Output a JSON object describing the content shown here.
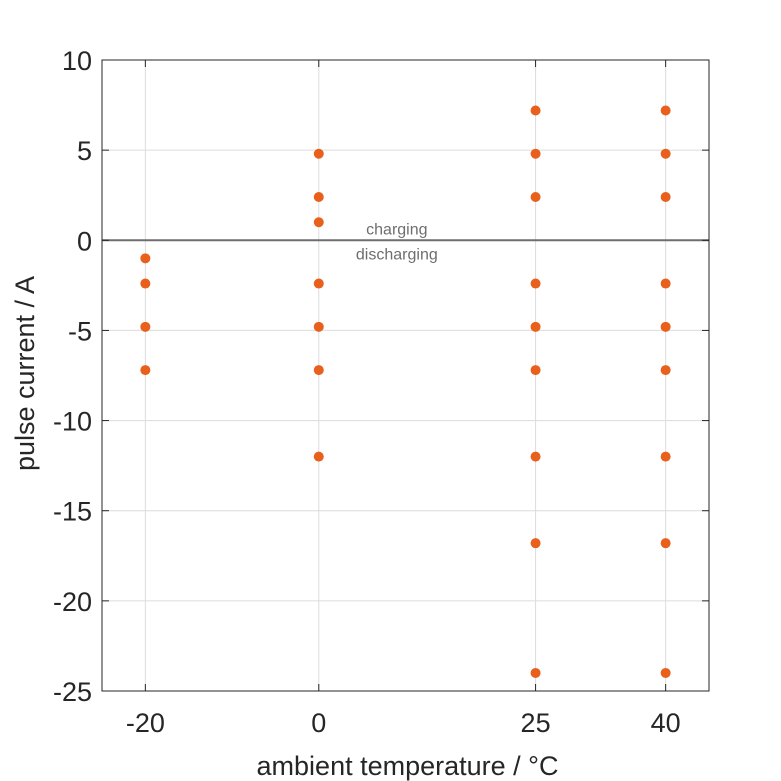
{
  "chart_data": {
    "type": "scatter",
    "xlabel": "ambient temperature / °C",
    "ylabel": "pulse current / A",
    "xticks": [
      -20,
      0,
      25,
      40
    ],
    "yticks": [
      10,
      5,
      0,
      -5,
      -10,
      -15,
      -20,
      -25
    ],
    "xlim": [
      -25,
      45
    ],
    "ylim": [
      -25,
      10
    ],
    "grid": true,
    "annotations": {
      "above": "charging",
      "below": "discharging"
    },
    "reference_line_y": 0,
    "marker_color": "#e8601c",
    "series": [
      {
        "points": [
          [
            -20,
            -1
          ],
          [
            -20,
            -2.4
          ],
          [
            -20,
            -4.8
          ],
          [
            -20,
            -7.2
          ],
          [
            0,
            4.8
          ],
          [
            0,
            2.4
          ],
          [
            0,
            1
          ],
          [
            0,
            -2.4
          ],
          [
            0,
            -4.8
          ],
          [
            0,
            -7.2
          ],
          [
            0,
            -12
          ],
          [
            25,
            7.2
          ],
          [
            25,
            4.8
          ],
          [
            25,
            2.4
          ],
          [
            25,
            -2.4
          ],
          [
            25,
            -4.8
          ],
          [
            25,
            -7.2
          ],
          [
            25,
            -12
          ],
          [
            25,
            -16.8
          ],
          [
            25,
            -24
          ],
          [
            40,
            7.2
          ],
          [
            40,
            4.8
          ],
          [
            40,
            2.4
          ],
          [
            40,
            -2.4
          ],
          [
            40,
            -4.8
          ],
          [
            40,
            -7.2
          ],
          [
            40,
            -12
          ],
          [
            40,
            -16.8
          ],
          [
            40,
            -24
          ]
        ]
      }
    ]
  }
}
